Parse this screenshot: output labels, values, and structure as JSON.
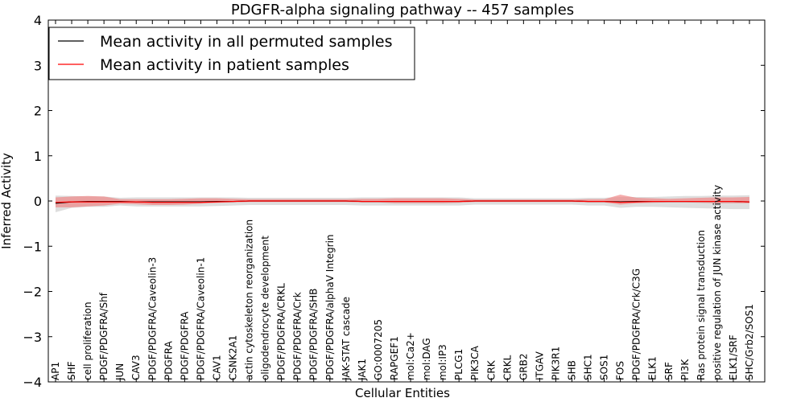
{
  "chart_data": {
    "type": "line",
    "title": "PDGFR-alpha signaling pathway -- 457 samples",
    "xlabel": "Cellular Entities",
    "ylabel": "Inferred Activity",
    "ylim": [
      -4,
      4
    ],
    "yticks": [
      -4,
      -3,
      -2,
      -1,
      0,
      1,
      2,
      3,
      4
    ],
    "ytick_labels": [
      "−4",
      "−3",
      "−2",
      "−1",
      "0",
      "1",
      "2",
      "3",
      "4"
    ],
    "legend_position": "top-left",
    "categories": [
      "AP1",
      "SHF",
      "cell proliferation",
      "PDGF/PDGFRA/Shf",
      "JUN",
      "CAV3",
      "PDGF/PDGFRA/Caveolin-3",
      "PDGFRA",
      "PDGF/PDGFRA",
      "PDGF/PDGFRA/Caveolin-1",
      "CAV1",
      "CSNK2A1",
      "actin cytoskeleton reorganization",
      "oligodendrocyte development",
      "PDGF/PDGFRA/CRKL",
      "PDGF/PDGFRA/Crk",
      "PDGF/PDGFRA/SHB",
      "PDGF/PDGFRA/alphaV Integrin",
      "JAK-STAT cascade",
      "JAK1",
      "GO:0007205",
      "RAPGEF1",
      "mol:Ca2+",
      "mol:DAG",
      "mol:IP3",
      "PLCG1",
      "PIK3CA",
      "CRK",
      "CRKL",
      "GRB2",
      "ITGAV",
      "PIK3R1",
      "SHB",
      "SHC1",
      "SOS1",
      "FOS",
      "PDGF/PDGFRA/Crk/C3G",
      "ELK1",
      "SRF",
      "PI3K",
      "Ras protein signal transduction",
      "positive regulation of JUN kinase activity",
      "ELK1/SRF",
      "SHC/Grb2/SOS1"
    ],
    "series": [
      {
        "name": "Mean activity in all permuted samples",
        "color": "#000000",
        "band_color": "#c8c8c8",
        "values": [
          -0.05,
          -0.02,
          -0.01,
          -0.01,
          -0.01,
          -0.02,
          -0.02,
          -0.02,
          -0.02,
          -0.02,
          -0.01,
          -0.01,
          0.0,
          0.0,
          0.0,
          0.0,
          0.0,
          0.0,
          0.0,
          -0.01,
          -0.01,
          -0.01,
          -0.01,
          -0.01,
          -0.01,
          -0.01,
          0.0,
          0.0,
          0.0,
          0.0,
          0.0,
          0.0,
          0.0,
          -0.01,
          -0.01,
          -0.02,
          -0.01,
          -0.01,
          -0.01,
          -0.01,
          -0.01,
          -0.01,
          -0.01,
          -0.02
        ],
        "lower": [
          -0.25,
          -0.15,
          -0.13,
          -0.13,
          -0.1,
          -0.12,
          -0.12,
          -0.12,
          -0.12,
          -0.12,
          -0.11,
          -0.1,
          -0.09,
          -0.09,
          -0.09,
          -0.09,
          -0.09,
          -0.09,
          -0.09,
          -0.1,
          -0.1,
          -0.1,
          -0.1,
          -0.1,
          -0.1,
          -0.1,
          -0.08,
          -0.08,
          -0.08,
          -0.08,
          -0.08,
          -0.08,
          -0.08,
          -0.1,
          -0.1,
          -0.15,
          -0.13,
          -0.13,
          -0.14,
          -0.15,
          -0.16,
          -0.17,
          -0.18,
          -0.18
        ],
        "upper": [
          0.12,
          0.11,
          0.1,
          0.1,
          0.07,
          0.08,
          0.08,
          0.08,
          0.08,
          0.08,
          0.08,
          0.08,
          0.07,
          0.07,
          0.07,
          0.07,
          0.07,
          0.07,
          0.07,
          0.08,
          0.08,
          0.08,
          0.08,
          0.08,
          0.08,
          0.08,
          0.06,
          0.06,
          0.06,
          0.06,
          0.06,
          0.06,
          0.06,
          0.07,
          0.07,
          0.09,
          0.09,
          0.09,
          0.1,
          0.11,
          0.11,
          0.12,
          0.12,
          0.13
        ]
      },
      {
        "name": "Mean activity in patient samples",
        "color": "#ff0000",
        "band_color": "#f08080",
        "values": [
          -0.03,
          -0.02,
          -0.02,
          -0.02,
          -0.02,
          -0.02,
          -0.03,
          -0.03,
          -0.03,
          -0.03,
          -0.02,
          -0.01,
          0.0,
          0.0,
          0.0,
          0.0,
          0.0,
          0.0,
          0.0,
          -0.01,
          -0.01,
          -0.01,
          -0.01,
          -0.01,
          -0.01,
          -0.01,
          0.0,
          0.0,
          0.0,
          0.0,
          0.0,
          0.0,
          0.0,
          -0.01,
          -0.01,
          -0.03,
          -0.02,
          -0.01,
          -0.01,
          -0.01,
          -0.01,
          -0.01,
          -0.01,
          -0.02
        ],
        "lower": [
          -0.14,
          -0.14,
          -0.12,
          -0.1,
          -0.06,
          -0.07,
          -0.09,
          -0.09,
          -0.08,
          -0.06,
          -0.04,
          -0.03,
          -0.02,
          -0.02,
          -0.02,
          -0.02,
          -0.02,
          -0.02,
          -0.02,
          -0.03,
          -0.03,
          -0.05,
          -0.05,
          -0.05,
          -0.05,
          -0.04,
          -0.02,
          -0.02,
          -0.02,
          -0.02,
          -0.02,
          -0.02,
          -0.02,
          -0.03,
          -0.03,
          -0.08,
          -0.05,
          -0.04,
          -0.03,
          -0.03,
          -0.04,
          -0.05,
          -0.05,
          -0.05
        ],
        "upper": [
          0.08,
          0.1,
          0.11,
          0.1,
          0.04,
          0.04,
          0.04,
          0.04,
          0.05,
          0.06,
          0.06,
          0.05,
          0.04,
          0.04,
          0.04,
          0.04,
          0.04,
          0.04,
          0.04,
          0.05,
          0.05,
          0.06,
          0.06,
          0.06,
          0.06,
          0.05,
          0.03,
          0.03,
          0.03,
          0.03,
          0.03,
          0.03,
          0.03,
          0.04,
          0.04,
          0.14,
          0.07,
          0.06,
          0.05,
          0.06,
          0.07,
          0.08,
          0.08,
          0.09
        ]
      }
    ]
  }
}
